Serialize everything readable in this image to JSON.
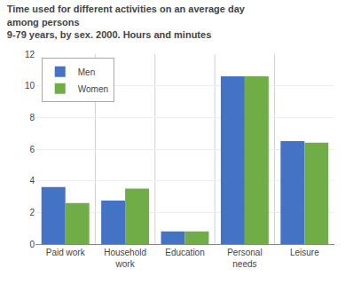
{
  "chart_data": {
    "type": "bar",
    "title": "Time used for different activities on an average day among persons\n9-79 years, by sex. 2000. Hours and minutes",
    "categories": [
      "Paid work",
      "Household\nwork",
      "Education",
      "Personal\nneeds",
      "Leisure"
    ],
    "series": [
      {
        "name": "Men",
        "color": "#4472C4",
        "values": [
          3.6,
          2.75,
          0.8,
          10.6,
          6.5
        ]
      },
      {
        "name": "Women",
        "color": "#70AD47",
        "values": [
          2.6,
          3.5,
          0.8,
          10.6,
          6.4
        ]
      }
    ],
    "ylim": [
      0,
      12
    ],
    "yticks": [
      0,
      2,
      4,
      6,
      8,
      10,
      12
    ],
    "grid": true,
    "legend": "upper left"
  }
}
